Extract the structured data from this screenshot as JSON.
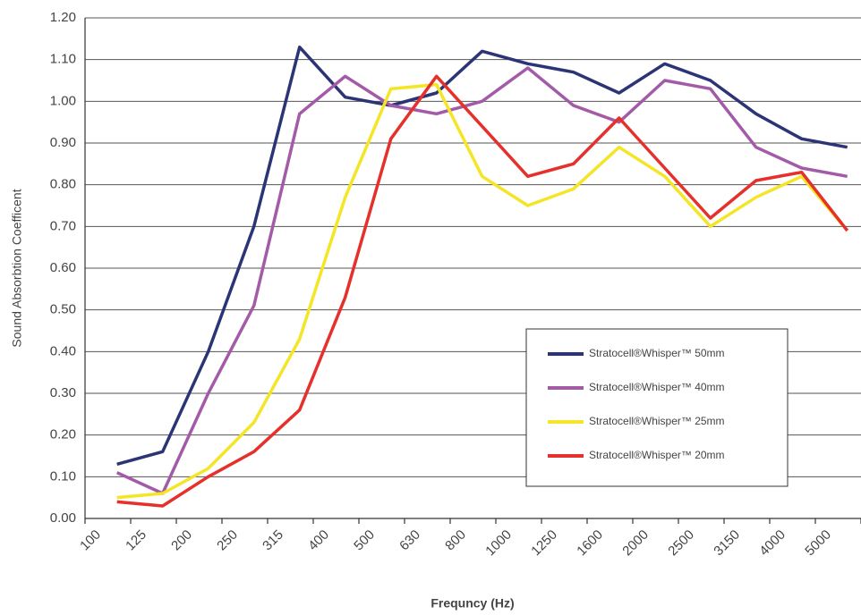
{
  "chart_data": {
    "type": "line",
    "x_label": "Frequncy (Hz)",
    "y_label": "Sound Absorbtion Coefficent",
    "categories": [
      "100",
      "125",
      "200",
      "250",
      "315",
      "400",
      "500",
      "630",
      "800",
      "1000",
      "1250",
      "1600",
      "2000",
      "2500",
      "3150",
      "4000",
      "5000"
    ],
    "series": [
      {
        "name": "Stratocell®Whisper™ 50mm",
        "color": "#2b3475",
        "values": [
          0.13,
          0.16,
          0.4,
          0.7,
          1.13,
          1.01,
          0.99,
          1.02,
          1.12,
          1.09,
          1.07,
          1.02,
          1.09,
          1.05,
          0.97,
          0.91,
          0.89
        ]
      },
      {
        "name": "Stratocell®Whisper™ 40mm",
        "color": "#a35ba8",
        "values": [
          0.11,
          0.06,
          0.3,
          0.51,
          0.97,
          1.06,
          0.99,
          0.97,
          1.0,
          1.08,
          0.99,
          0.95,
          1.05,
          1.03,
          0.89,
          0.84,
          0.82
        ]
      },
      {
        "name": "Stratocell®Whisper™ 25mm",
        "color": "#f4e526",
        "values": [
          0.05,
          0.06,
          0.12,
          0.23,
          0.43,
          0.77,
          1.03,
          1.04,
          0.82,
          0.75,
          0.79,
          0.89,
          0.82,
          0.7,
          0.77,
          0.82,
          0.69
        ]
      },
      {
        "name": "Stratocell®Whisper™ 20mm",
        "color": "#e5302b",
        "values": [
          0.04,
          0.03,
          0.1,
          0.16,
          0.26,
          0.53,
          0.91,
          1.06,
          0.94,
          0.82,
          0.85,
          0.96,
          0.84,
          0.72,
          0.81,
          0.83,
          0.69
        ]
      }
    ],
    "ylim": [
      0,
      1.2
    ],
    "yticks": [
      {
        "value": 0,
        "label": "0.00"
      },
      {
        "value": 0.1,
        "label": "0.10"
      },
      {
        "value": 0.2,
        "label": "0.20"
      },
      {
        "value": 0.3,
        "label": "0.30"
      },
      {
        "value": 0.4,
        "label": "0.40"
      },
      {
        "value": 0.5,
        "label": "0.50"
      },
      {
        "value": 0.6,
        "label": "0.60"
      },
      {
        "value": 0.7,
        "label": "0.70"
      },
      {
        "value": 0.8,
        "label": "0.80"
      },
      {
        "value": 0.9,
        "label": "0.90"
      },
      {
        "value": 1.0,
        "label": "1.00"
      },
      {
        "value": 1.1,
        "label": "1.10"
      },
      {
        "value": 1.2,
        "label": "1.20"
      }
    ],
    "grid": true
  }
}
